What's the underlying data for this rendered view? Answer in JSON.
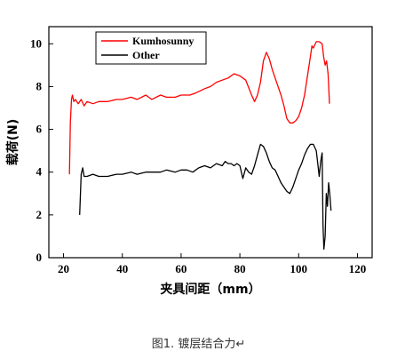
{
  "caption": "图1. 镀层结合力↵",
  "chart_data": {
    "type": "line",
    "title": "",
    "xlabel": "夹具间距（mm）",
    "ylabel": "载荷(N)",
    "xlim": [
      15,
      125
    ],
    "ylim": [
      0,
      10.8
    ],
    "xticks": [
      20,
      40,
      60,
      80,
      100,
      120
    ],
    "yticks": [
      0,
      2,
      4,
      6,
      8,
      10
    ],
    "grid": false,
    "legend_position": "top-left",
    "series": [
      {
        "name": "Kumhosunny",
        "color": "#ff0000",
        "x": [
          22.0,
          22.3,
          22.7,
          23.0,
          23.5,
          24,
          25,
          26,
          27,
          28,
          30,
          32,
          35,
          38,
          40,
          43,
          45,
          48,
          50,
          53,
          55,
          58,
          60,
          63,
          65,
          68,
          70,
          72,
          74,
          76,
          78,
          80,
          82,
          84,
          85,
          86,
          87,
          88,
          89,
          90,
          91,
          92,
          93,
          94,
          95,
          96,
          97,
          98,
          99,
          100,
          101,
          102,
          103,
          104,
          104.5,
          105,
          106,
          107,
          108,
          108.5,
          109,
          109.5,
          110,
          110.5
        ],
        "y": [
          3.9,
          6.3,
          7.4,
          7.6,
          7.3,
          7.4,
          7.2,
          7.4,
          7.1,
          7.3,
          7.2,
          7.3,
          7.3,
          7.4,
          7.4,
          7.5,
          7.4,
          7.6,
          7.4,
          7.6,
          7.5,
          7.5,
          7.6,
          7.6,
          7.7,
          7.9,
          8.0,
          8.2,
          8.3,
          8.4,
          8.6,
          8.5,
          8.3,
          7.6,
          7.3,
          7.6,
          8.2,
          9.2,
          9.6,
          9.3,
          8.8,
          8.4,
          8.0,
          7.6,
          7.1,
          6.5,
          6.3,
          6.3,
          6.4,
          6.6,
          7.0,
          7.6,
          8.5,
          9.4,
          9.9,
          9.8,
          10.1,
          10.1,
          10.0,
          9.4,
          9.0,
          9.2,
          8.6,
          7.2
        ]
      },
      {
        "name": "Other",
        "color": "#000000",
        "x": [
          25.5,
          26.0,
          26.5,
          27,
          28,
          30,
          32,
          35,
          38,
          40,
          43,
          45,
          48,
          50,
          53,
          55,
          58,
          60,
          62,
          64,
          66,
          68,
          70,
          72,
          74,
          75,
          76,
          77,
          78,
          79,
          80,
          81,
          82,
          83,
          84,
          85,
          86,
          87,
          88,
          89,
          90,
          91,
          92,
          93,
          94,
          95,
          96,
          97,
          98,
          99,
          100,
          101,
          102,
          103,
          104,
          105,
          106,
          106.5,
          107,
          107.5,
          108,
          108.3,
          108.6,
          109,
          109.4,
          109.8,
          110.2,
          110.6,
          111
        ],
        "y": [
          2.0,
          3.9,
          4.2,
          3.8,
          3.8,
          3.9,
          3.8,
          3.8,
          3.9,
          3.9,
          4.0,
          3.9,
          4.0,
          4.0,
          4.0,
          4.1,
          4.0,
          4.1,
          4.1,
          4.0,
          4.2,
          4.3,
          4.2,
          4.4,
          4.3,
          4.5,
          4.4,
          4.4,
          4.3,
          4.4,
          4.3,
          3.7,
          4.2,
          4.0,
          3.9,
          4.3,
          4.8,
          5.3,
          5.2,
          4.9,
          4.5,
          4.2,
          4.1,
          3.8,
          3.5,
          3.3,
          3.1,
          3.0,
          3.3,
          3.7,
          4.1,
          4.4,
          4.8,
          5.1,
          5.3,
          5.3,
          5.0,
          4.4,
          3.8,
          4.5,
          4.9,
          1.5,
          0.4,
          1.0,
          3.0,
          2.4,
          3.5,
          3.0,
          2.2
        ]
      }
    ]
  }
}
